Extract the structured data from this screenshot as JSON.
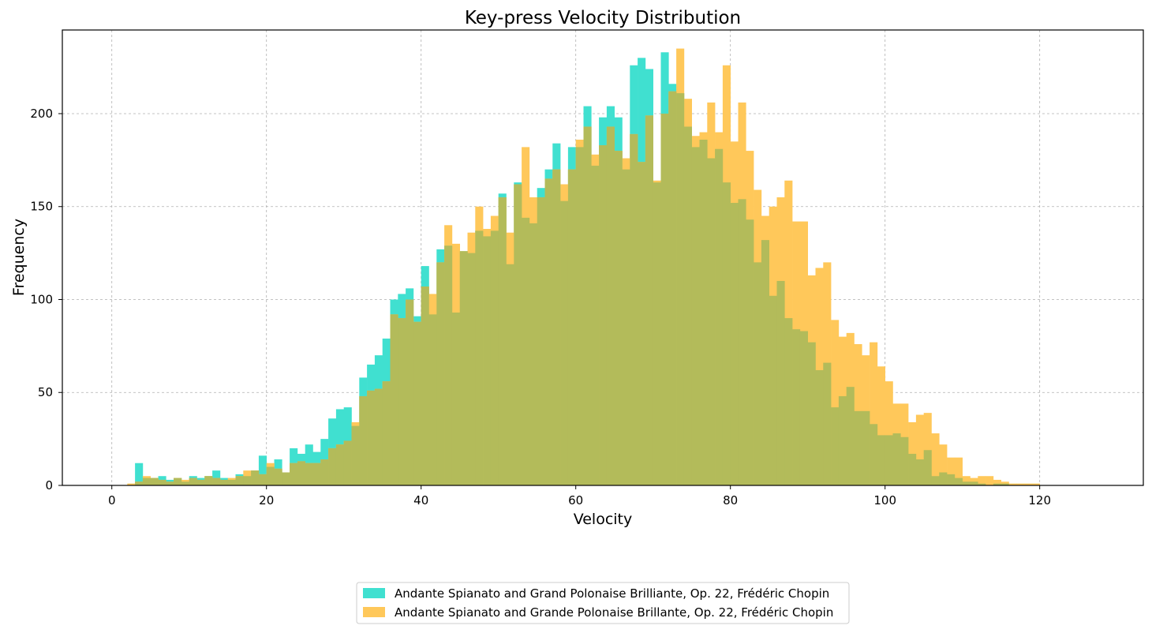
{
  "chart_data": {
    "type": "bar",
    "title": "Key-press Velocity Distribution",
    "xlabel": "Velocity",
    "ylabel": "Frequency",
    "xlim": [
      -6.4,
      133.4
    ],
    "ylim": [
      0,
      245
    ],
    "x_ticks": [
      0,
      20,
      40,
      60,
      80,
      100,
      120
    ],
    "y_ticks": [
      0,
      50,
      100,
      150,
      200
    ],
    "grid": true,
    "legend_position": "bottom-center, below plot",
    "bin_start": 0,
    "bin_width": 1,
    "overlay_color": "#b3bb5a",
    "series": [
      {
        "name": "Andante Spianato and Grand Polonaise Brilliante, Op. 22, Frédéric Chopin",
        "color": "#40e0d0",
        "values": [
          0,
          0,
          0,
          12,
          4,
          4,
          5,
          3,
          4,
          2,
          5,
          4,
          5,
          8,
          4,
          3,
          6,
          5,
          8,
          16,
          10,
          14,
          7,
          20,
          17,
          22,
          18,
          25,
          36,
          41,
          42,
          32,
          58,
          65,
          70,
          79,
          100,
          103,
          106,
          91,
          118,
          92,
          127,
          129,
          93,
          126,
          125,
          137,
          134,
          137,
          157,
          119,
          163,
          144,
          141,
          160,
          170,
          184,
          153,
          182,
          182,
          204,
          172,
          198,
          204,
          198,
          170,
          226,
          230,
          224,
          163,
          233,
          216,
          211,
          193,
          182,
          186,
          176,
          181,
          163,
          152,
          154,
          143,
          120,
          132,
          102,
          110,
          90,
          84,
          83,
          77,
          62,
          66,
          42,
          48,
          53,
          40,
          40,
          33,
          27,
          27,
          28,
          26,
          17,
          14,
          19,
          5,
          7,
          6,
          4,
          2,
          2,
          1,
          0,
          1,
          1,
          0,
          0,
          0,
          0,
          0,
          0,
          0,
          0,
          0,
          0,
          0,
          0
        ]
      },
      {
        "name": "Andante Spianato and Grande Polonaise Brillante, Op. 22, Frédéric Chopin",
        "color": "#ffc85a",
        "values": [
          0,
          0,
          1,
          2,
          5,
          4,
          3,
          2,
          4,
          3,
          4,
          3,
          5,
          4,
          3,
          4,
          5,
          8,
          8,
          6,
          12,
          9,
          7,
          12,
          13,
          12,
          12,
          14,
          20,
          22,
          24,
          34,
          48,
          51,
          52,
          56,
          92,
          90,
          100,
          88,
          107,
          103,
          120,
          140,
          130,
          126,
          136,
          150,
          138,
          145,
          155,
          136,
          162,
          182,
          155,
          155,
          165,
          170,
          162,
          170,
          186,
          193,
          178,
          183,
          193,
          180,
          176,
          189,
          174,
          199,
          164,
          200,
          212,
          235,
          208,
          188,
          190,
          206,
          190,
          226,
          185,
          206,
          180,
          159,
          145,
          150,
          155,
          164,
          142,
          142,
          113,
          117,
          120,
          89,
          80,
          82,
          76,
          70,
          77,
          64,
          56,
          44,
          44,
          34,
          38,
          39,
          28,
          22,
          15,
          15,
          5,
          4,
          5,
          5,
          3,
          2,
          1,
          1,
          1,
          1,
          0,
          0,
          0,
          0,
          0,
          0,
          0,
          0
        ]
      }
    ]
  }
}
